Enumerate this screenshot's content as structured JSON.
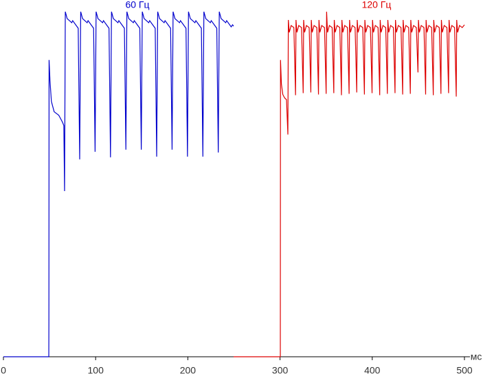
{
  "chart_data": {
    "type": "line",
    "xlabel": "мс",
    "xlim": [
      0,
      500
    ],
    "xticks": [
      0,
      100,
      200,
      300,
      400,
      500
    ],
    "ylim": [
      0,
      100
    ],
    "series": [
      {
        "name": "60 Гц",
        "color": "#0000cc",
        "x": [
          0,
          49.2,
          49.3,
          49.5,
          50.5,
          52,
          55,
          60,
          64,
          65.5,
          66.3,
          67.1,
          69.1,
          74.1,
          75.1,
          81.1,
          82.7,
          83.8,
          85.8,
          90.8,
          91.8,
          97.8,
          99.4,
          100.5,
          102.5,
          107.5,
          108.5,
          114.5,
          116.1,
          117.2,
          119.2,
          124.2,
          125.2,
          131.2,
          132.8,
          133.9,
          135.9,
          140.9,
          141.9,
          147.9,
          149.5,
          150.6,
          152.6,
          157.6,
          158.6,
          164.6,
          166.2,
          167.3,
          169.3,
          174.3,
          175.3,
          181.3,
          182.9,
          184,
          186,
          191,
          192,
          198,
          199.6,
          200.7,
          202.7,
          207.7,
          208.7,
          214.7,
          216.3,
          217.4,
          219.4,
          224.4,
          225.4,
          231.4,
          233,
          234.1,
          236.1,
          241.1,
          242.1,
          247,
          248.5,
          249.6
        ],
        "values": [
          0,
          0,
          10,
          86,
          80,
          74,
          71,
          70,
          68,
          67,
          48,
          100,
          98,
          96.8,
          97.4,
          95.2,
          57.2,
          100,
          98,
          96.8,
          97.4,
          95.2,
          59.4,
          100,
          98,
          96.8,
          97.4,
          95.2,
          57.8,
          100,
          98,
          96.8,
          97.4,
          95.2,
          60,
          100,
          98,
          96.8,
          97.4,
          95.2,
          60,
          100,
          98,
          96.8,
          97.4,
          95.2,
          58,
          100,
          98,
          96.8,
          97.4,
          95.2,
          60,
          100,
          98,
          96.8,
          97.4,
          95.2,
          58,
          100,
          98,
          96.8,
          97.4,
          95.2,
          58,
          100,
          98,
          96.8,
          97.4,
          95.2,
          59.2,
          100,
          98,
          96.8,
          97.4,
          95.6,
          96.2,
          95.8
        ]
      },
      {
        "name": "120 Гц",
        "color": "#dd0000",
        "x": [
          249.6,
          300.3,
          300.5,
          301.5,
          303,
          305,
          307,
          308.5,
          309,
          310,
          312,
          315,
          316.8,
          317.3,
          318.3,
          320.3,
          323.3,
          325.1,
          325.6,
          326.6,
          328.6,
          331.6,
          333.4,
          333.9,
          334.9,
          336.9,
          339.9,
          341.7,
          342.2,
          343.2,
          345.2,
          348.2,
          350,
          350.5,
          351.5,
          353.5,
          356.5,
          358.3,
          358.8,
          359.8,
          361.8,
          364.8,
          366.6,
          367.1,
          368.1,
          370.1,
          373.1,
          374.9,
          375.4,
          376.4,
          378.4,
          381.4,
          383.2,
          383.7,
          384.7,
          386.7,
          389.7,
          391.5,
          392,
          393,
          395,
          398,
          399.8,
          400.3,
          401.3,
          403.3,
          406.3,
          408.1,
          408.6,
          409.6,
          411.6,
          414.6,
          416.4,
          416.9,
          417.9,
          419.9,
          422.9,
          424.7,
          425.2,
          426.2,
          428.2,
          431.2,
          433,
          433.5,
          434.5,
          436.5,
          439.5,
          441.3,
          441.8,
          442.8,
          444.8,
          447.8,
          449.6,
          450.1,
          451.1,
          453.1,
          456.1,
          457.9,
          458.4,
          459.4,
          461.4,
          464.4,
          466.2,
          466.7,
          467.7,
          469.7,
          472.7,
          474.5,
          475,
          476,
          478,
          481,
          482.8,
          483.3,
          484.3,
          486.3,
          489.3,
          491.1,
          491.6,
          492.6,
          494.6,
          497.6,
          500
        ],
        "values": [
          0,
          0,
          86,
          79,
          76,
          75,
          74.5,
          64.4,
          97.6,
          94,
          96,
          95.4,
          75.8,
          97.6,
          94,
          96,
          95.4,
          76.4,
          97.6,
          94,
          96,
          95.4,
          76.6,
          97.6,
          94,
          96,
          95.4,
          76,
          97.6,
          94,
          96,
          95.4,
          76.2,
          100,
          94,
          96,
          95.4,
          76.4,
          97.6,
          94,
          96,
          95.4,
          75.8,
          97.6,
          94,
          96,
          95.4,
          76.2,
          97.6,
          94,
          96,
          95.4,
          76.6,
          97.6,
          94,
          96,
          95.4,
          76,
          97.6,
          94,
          96,
          95.4,
          76.4,
          97.6,
          94,
          96,
          95.4,
          75.8,
          97.6,
          94,
          96,
          95.4,
          76.2,
          97.6,
          94,
          96,
          95.4,
          76.4,
          97.6,
          94,
          96,
          95.4,
          76,
          97.6,
          94,
          96,
          95.4,
          76.2,
          97.6,
          94,
          96,
          95.4,
          82.4,
          97.6,
          94,
          96,
          95.4,
          76,
          97.6,
          94,
          96,
          95.4,
          75.8,
          97.6,
          94,
          96,
          95.4,
          76.2,
          97.6,
          94,
          96,
          95.4,
          76.4,
          97.6,
          94,
          96,
          95.4,
          75.4,
          97.6,
          94,
          96,
          95.4,
          96.2
        ]
      }
    ]
  }
}
